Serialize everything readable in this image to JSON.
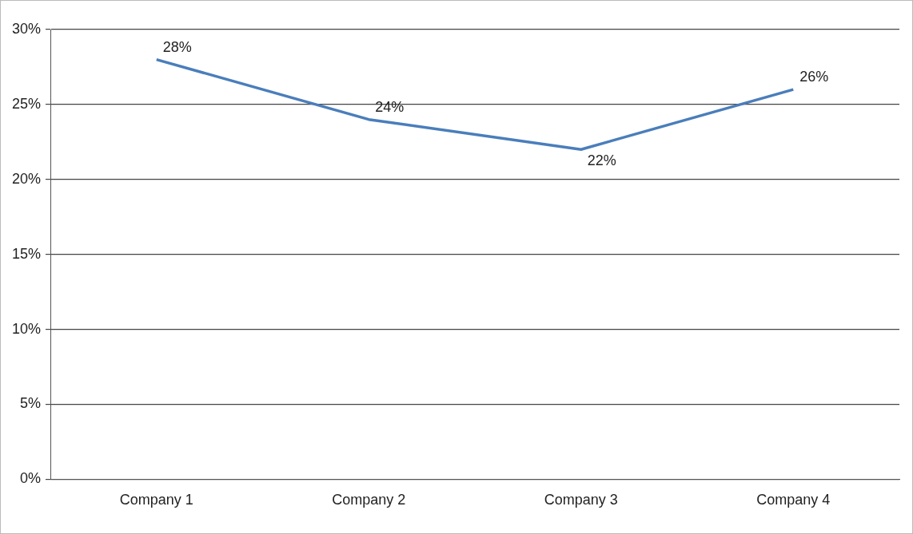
{
  "chart_data": {
    "type": "line",
    "categories": [
      "Company 1",
      "Company 2",
      "Company 3",
      "Company 4"
    ],
    "series": [
      {
        "color": "#4a7ebb",
        "values": [
          28,
          24,
          22,
          26
        ],
        "value_labels": [
          "28%",
          "24%",
          "22%",
          "26%"
        ]
      }
    ],
    "ylim": [
      0,
      30
    ],
    "yticks": [
      {
        "value": 0,
        "label": "0%"
      },
      {
        "value": 5,
        "label": "5%"
      },
      {
        "value": 10,
        "label": "10%"
      },
      {
        "value": 15,
        "label": "15%"
      },
      {
        "value": 20,
        "label": "20%"
      },
      {
        "value": 25,
        "label": "25%"
      },
      {
        "value": 30,
        "label": "30%"
      }
    ],
    "grid": "y",
    "legend": false,
    "marker": "none",
    "line_style": "solid"
  }
}
